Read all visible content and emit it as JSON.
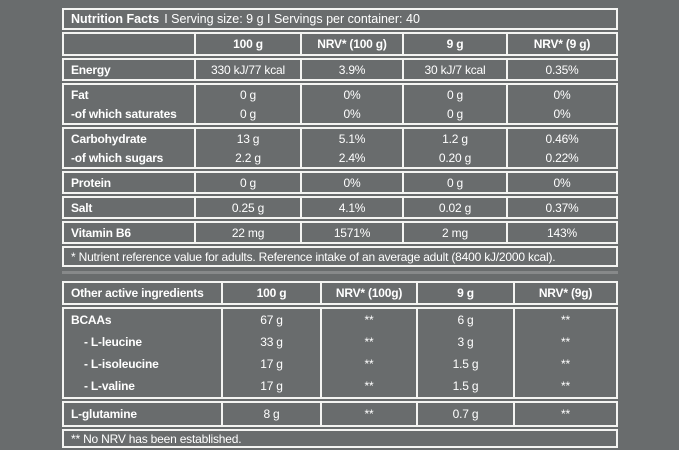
{
  "colors": {
    "background": "#696c6d",
    "line": "#f4f4f2",
    "text": "#ffffff"
  },
  "nutrition_table": {
    "title_product": "Nutrition Facts",
    "title_info": "I Serving size: 9 g I Servings per container: 40",
    "headers": {
      "c1": "100 g",
      "c2": "NRV* (100 g)",
      "c3": "9 g",
      "c4": "NRV* (9 g)"
    },
    "rows": {
      "energy": {
        "label": "Energy",
        "c1": "330 kJ/77 kcal",
        "c2": "3.9%",
        "c3": "30 kJ/7 kcal",
        "c4": "0.35%"
      },
      "fat": {
        "label": "Fat",
        "c1": "0 g",
        "c2": "0%",
        "c3": "0 g",
        "c4": "0%"
      },
      "saturates": {
        "label": "-of which saturates",
        "c1": "0 g",
        "c2": "0%",
        "c3": "0 g",
        "c4": "0%"
      },
      "carbohydrate": {
        "label": "Carbohydrate",
        "c1": "13 g",
        "c2": "5.1%",
        "c3": "1.2 g",
        "c4": "0.46%"
      },
      "sugars": {
        "label": "-of which sugars",
        "c1": "2.2 g",
        "c2": "2.4%",
        "c3": "0.20 g",
        "c4": "0.22%"
      },
      "protein": {
        "label": "Protein",
        "c1": "0 g",
        "c2": "0%",
        "c3": "0 g",
        "c4": "0%"
      },
      "salt": {
        "label": "Salt",
        "c1": "0.25 g",
        "c2": "4.1%",
        "c3": "0.02 g",
        "c4": "0.37%"
      },
      "vitamin_b6": {
        "label": "Vitamin B6",
        "c1": "22 mg",
        "c2": "1571%",
        "c3": "2 mg",
        "c4": "143%"
      }
    },
    "footnote": "* Nutrient reference value for adults. Reference intake of an average adult (8400 kJ/2000 kcal)."
  },
  "ingredients_table": {
    "headers": {
      "label": "Other active ingredients",
      "c1": "100 g",
      "c2": "NRV* (100g)",
      "c3": "9 g",
      "c4": "NRV* (9g)"
    },
    "rows": {
      "bcaas": {
        "label": "BCAAs",
        "c1": "67 g",
        "c2": "**",
        "c3": "6 g",
        "c4": "**"
      },
      "leucine": {
        "label": "- L-leucine",
        "c1": "33 g",
        "c2": "**",
        "c3": "3 g",
        "c4": "**"
      },
      "isoleucine": {
        "label": "- L-isoleucine",
        "c1": "17 g",
        "c2": "**",
        "c3": "1.5 g",
        "c4": "**"
      },
      "valine": {
        "label": "- L-valine",
        "c1": "17 g",
        "c2": "**",
        "c3": "1.5 g",
        "c4": "**"
      },
      "glutamine": {
        "label": "L-glutamine",
        "c1": "8 g",
        "c2": "**",
        "c3": "0.7 g",
        "c4": "**"
      }
    },
    "footnote": "** No NRV has been established."
  }
}
